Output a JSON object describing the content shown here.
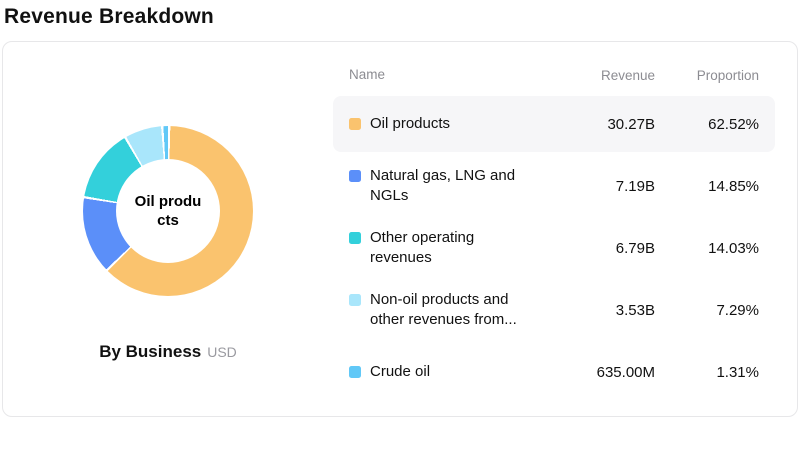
{
  "page": {
    "title": "Revenue Breakdown"
  },
  "chart": {
    "center_label": "Oil products",
    "caption": "By Business",
    "unit": "USD"
  },
  "table": {
    "headers": {
      "name": "Name",
      "revenue": "Revenue",
      "proportion": "Proportion"
    },
    "rows": [
      {
        "name": "Oil products",
        "revenue": "30.27B",
        "proportion": "62.52%",
        "color": "#FAC36E",
        "highlighted": true
      },
      {
        "name": "Natural gas, LNG and NGLs",
        "revenue": "7.19B",
        "proportion": "14.85%",
        "color": "#5B8FF9",
        "highlighted": false
      },
      {
        "name": "Other operating revenues",
        "revenue": "6.79B",
        "proportion": "14.03%",
        "color": "#33D0DB",
        "highlighted": false
      },
      {
        "name": "Non-oil products and other revenues from...",
        "revenue": "3.53B",
        "proportion": "7.29%",
        "color": "#A9E6FB",
        "highlighted": false
      },
      {
        "name": "Crude oil",
        "revenue": "635.00M",
        "proportion": "1.31%",
        "color": "#61C8F7",
        "highlighted": false
      }
    ]
  },
  "chart_data": {
    "type": "pie",
    "donut": true,
    "title": "Revenue Breakdown",
    "series_label": "By Business",
    "unit": "USD",
    "center_label": "Oil products",
    "legend_position": "right-table",
    "slices": [
      {
        "label": "Oil products",
        "value": "30.27B",
        "proportion_pct": 62.52,
        "color": "#FAC36E"
      },
      {
        "label": "Natural gas, LNG and NGLs",
        "value": "7.19B",
        "proportion_pct": 14.85,
        "color": "#5B8FF9"
      },
      {
        "label": "Other operating revenues",
        "value": "6.79B",
        "proportion_pct": 14.03,
        "color": "#33D0DB"
      },
      {
        "label": "Non-oil products and other revenues from...",
        "value": "3.53B",
        "proportion_pct": 7.29,
        "color": "#A9E6FB"
      },
      {
        "label": "Crude oil",
        "value": "635.00M",
        "proportion_pct": 1.31,
        "color": "#61C8F7"
      }
    ]
  }
}
